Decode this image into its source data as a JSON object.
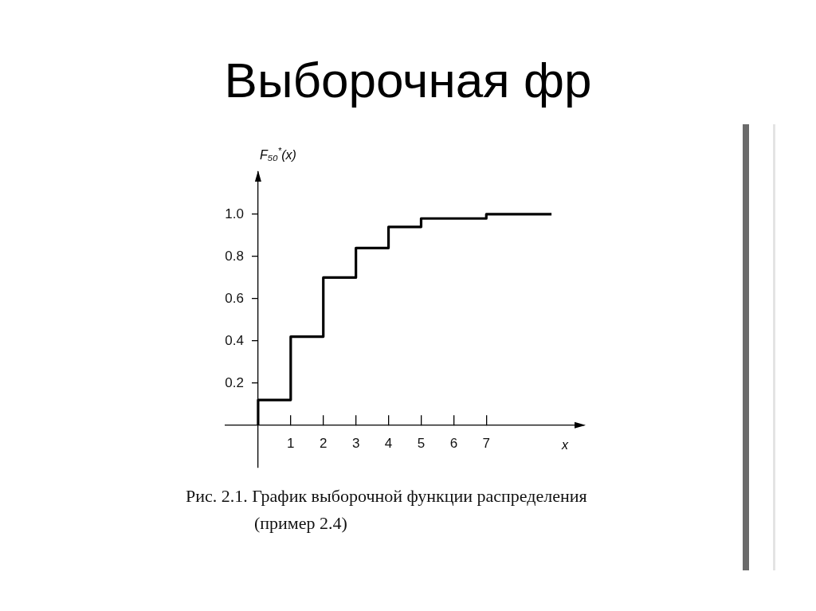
{
  "chart_data": {
    "type": "step",
    "title": "Выборочная фр",
    "ylabel": "F₅₀$^{*}$(x)",
    "xlabel": "x",
    "x": [
      0,
      0,
      1,
      2,
      3,
      4,
      5,
      7,
      9
    ],
    "values": [
      0,
      0.12,
      0.42,
      0.7,
      0.84,
      0.94,
      0.98,
      1.0,
      1.0
    ],
    "color": "#000000",
    "xlim": [
      -1,
      10
    ],
    "ylim": [
      -0.2,
      1.2
    ],
    "xticks": [
      1,
      2,
      3,
      4,
      5,
      6,
      7
    ],
    "yticks": [
      0.2,
      0.4,
      0.6,
      0.8,
      {
        "value": 1,
        "label": "1.0"
      }
    ],
    "marker": "none",
    "line_style": "solid",
    "annotations": [
      "Рис. 2.1. График выборочной функции распределения (пример 2.4)"
    ]
  }
}
